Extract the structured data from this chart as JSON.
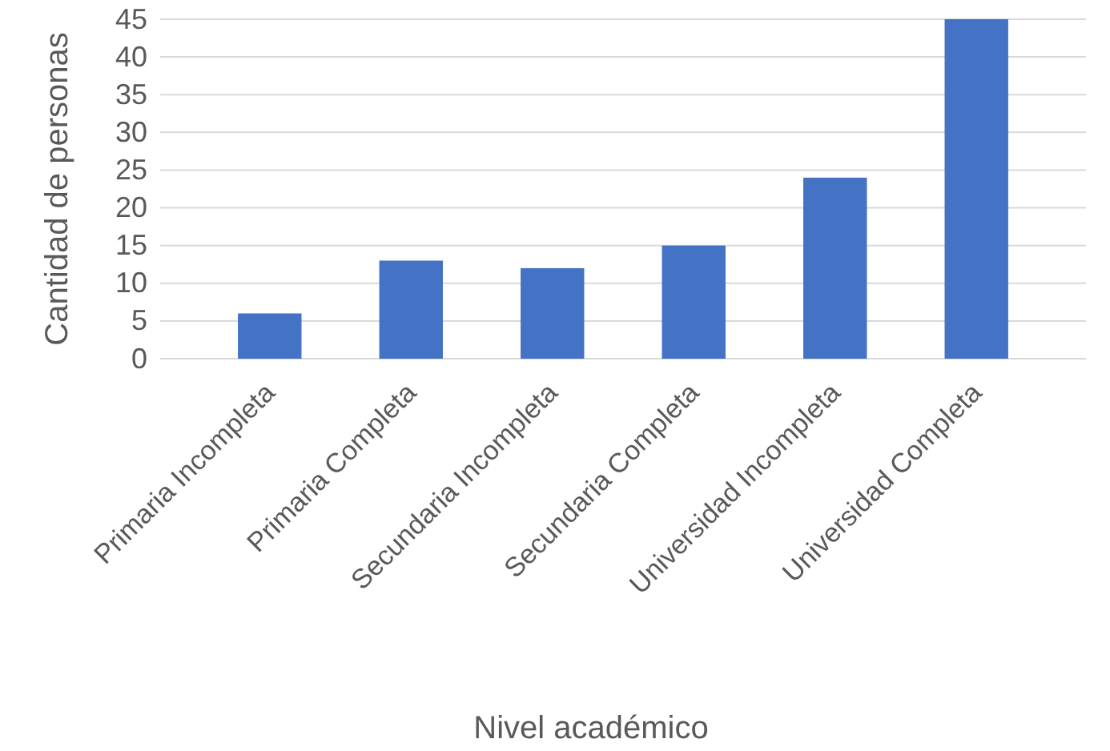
{
  "chart_data": {
    "type": "bar",
    "xlabel": "Nivel académico",
    "ylabel": "Cantidad de personas",
    "categories": [
      "Primaria Incompleta",
      "Primaria Completa",
      "Secundaria Incompleta",
      "Secundaria Completa",
      "Universidad Incompleta",
      "Universidad Completa"
    ],
    "values": [
      6,
      13,
      12,
      15,
      24,
      45
    ],
    "color": "#4472c4",
    "ylim": [
      0,
      45
    ],
    "yticks": [
      0,
      5,
      10,
      15,
      20,
      25,
      30,
      35,
      40,
      45
    ],
    "grid": "y"
  }
}
